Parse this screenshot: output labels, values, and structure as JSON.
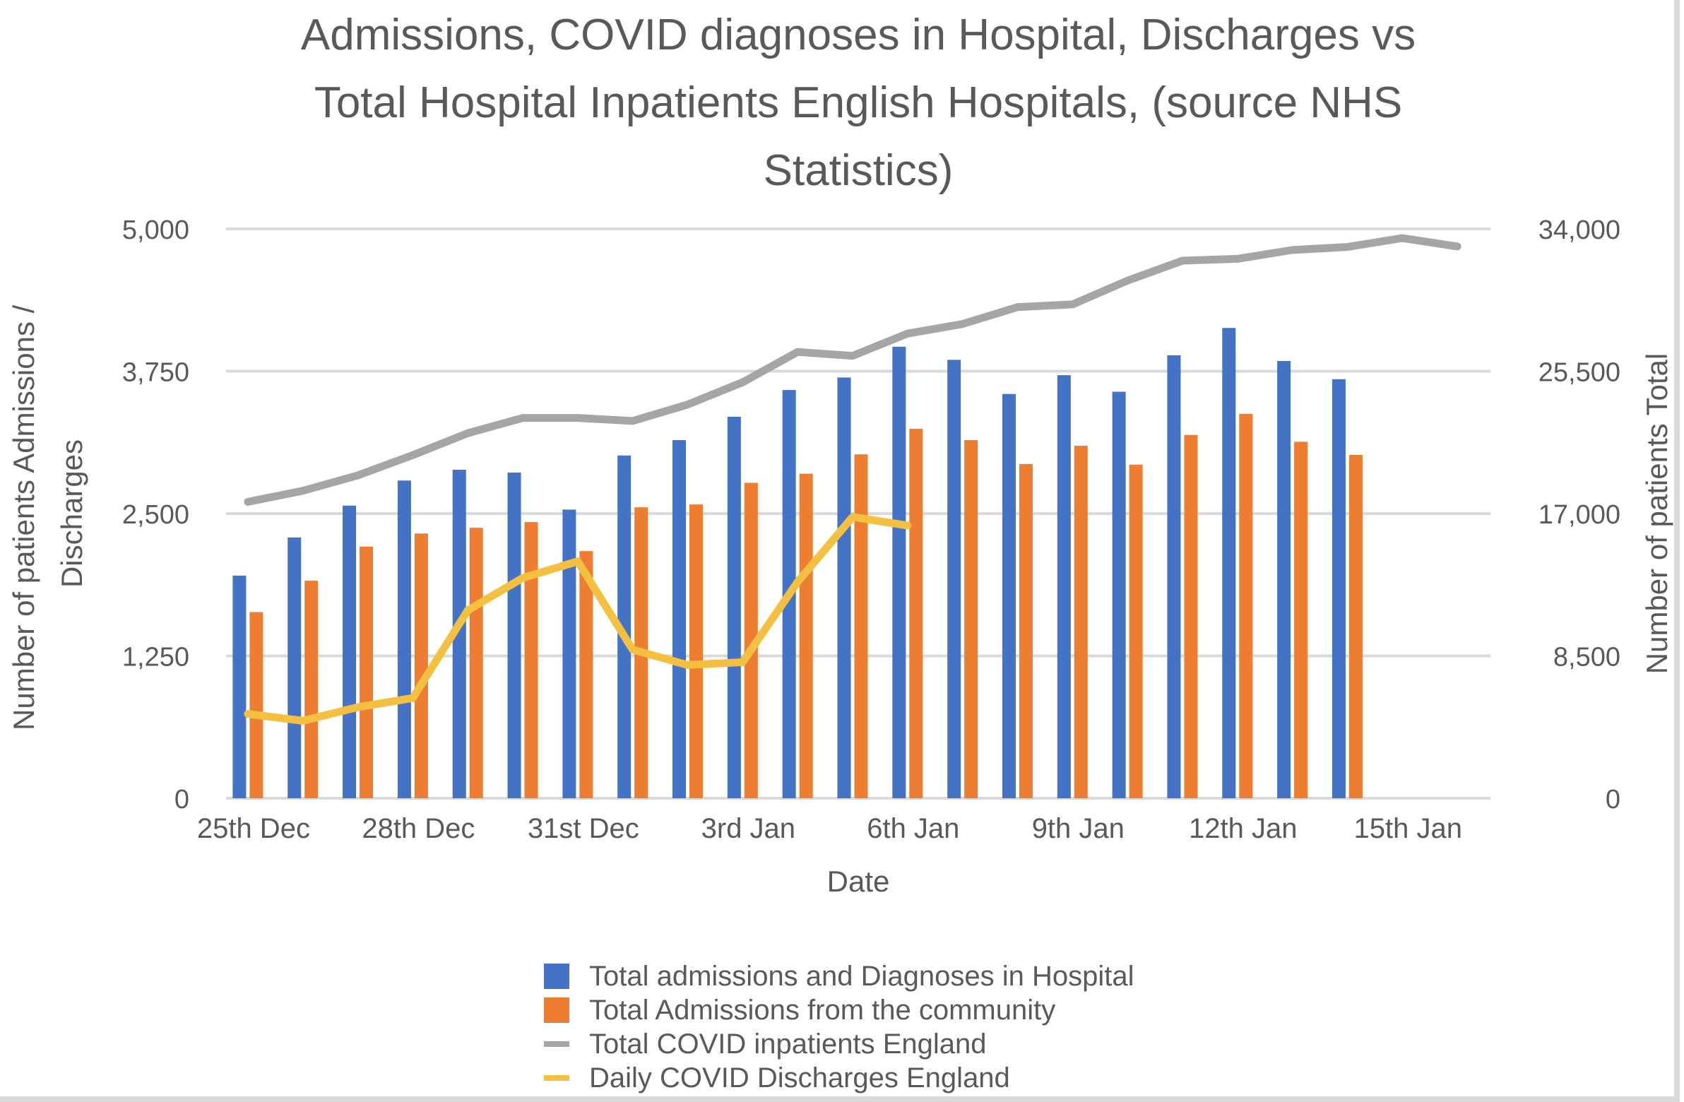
{
  "chart_data": {
    "type": "bar",
    "title": "Admissions, COVID diagnoses in Hospital, Discharges vs Total Hospital Inpatients English Hospitals, (source NHS Statistics)",
    "title_lines": [
      "Admissions, COVID diagnoses in Hospital, Discharges vs",
      "Total Hospital Inpatients English Hospitals, (source NHS",
      "Statistics)"
    ],
    "xlabel": "Date",
    "ylabel": "Number of patients Admissions / Discharges",
    "ylabel_lines": [
      "Number of patients Admissions /",
      "Discharges"
    ],
    "y2label": "Number of patients Total",
    "ylim": [
      0,
      5000
    ],
    "y2lim": [
      0,
      34000
    ],
    "yticks": [
      "0",
      "1,250",
      "2,500",
      "3,750",
      "5,000"
    ],
    "y2ticks": [
      "0",
      "8,500",
      "17,000",
      "25,500",
      "34,000"
    ],
    "grid": true,
    "legend_position": "bottom",
    "categories": [
      "25 Dec",
      "26 Dec",
      "27 Dec",
      "28 Dec",
      "29 Dec",
      "30 Dec",
      "31 Dec",
      "1 Jan",
      "2 Jan",
      "3 Jan",
      "4 Jan",
      "5 Jan",
      "6 Jan",
      "7 Jan",
      "8 Jan",
      "9 Jan",
      "10 Jan",
      "11 Jan",
      "12 Jan",
      "13 Jan",
      "14 Jan",
      "15 Jan",
      "16 Jan"
    ],
    "tick_labels": [
      {
        "index": 0,
        "label": "25th Dec"
      },
      {
        "index": 3,
        "label": "28th Dec"
      },
      {
        "index": 6,
        "label": "31st Dec"
      },
      {
        "index": 9,
        "label": "3rd Jan"
      },
      {
        "index": 12,
        "label": "6th Jan"
      },
      {
        "index": 15,
        "label": "9th Jan"
      },
      {
        "index": 18,
        "label": "12th Jan"
      },
      {
        "index": 21,
        "label": "15th Jan"
      }
    ],
    "series": [
      {
        "name": "Total admissions and Diagnoses in Hospital",
        "type": "bar",
        "axis": "left",
        "color": "#4472c4",
        "values": [
          1955,
          2290,
          2570,
          2790,
          2885,
          2860,
          2535,
          3010,
          3145,
          3350,
          3585,
          3695,
          3965,
          3850,
          3550,
          3715,
          3570,
          3890,
          4130,
          3840,
          3680,
          null,
          null
        ]
      },
      {
        "name": "Total Admissions from the community",
        "type": "bar",
        "axis": "left",
        "color": "#ed7d31",
        "values": [
          1635,
          1910,
          2210,
          2325,
          2375,
          2425,
          2170,
          2555,
          2580,
          2770,
          2850,
          3020,
          3245,
          3145,
          2935,
          3095,
          2930,
          3190,
          3375,
          3130,
          3015,
          null,
          null
        ]
      },
      {
        "name": "Total COVID inpatients England",
        "type": "line",
        "axis": "right",
        "color": "#a5a5a5",
        "values": [
          17700,
          18360,
          19280,
          20490,
          21800,
          22710,
          22710,
          22530,
          23510,
          24840,
          26650,
          26420,
          27750,
          28320,
          29330,
          29490,
          30910,
          32100,
          32210,
          32740,
          32920,
          33450,
          32950
        ]
      },
      {
        "name": "Daily COVID Discharges England",
        "type": "line",
        "axis": "left",
        "color": "#f4c042",
        "values": [
          740,
          680,
          800,
          880,
          1650,
          1935,
          2080,
          1305,
          1170,
          1195,
          1900,
          2470,
          2395,
          null,
          null,
          null,
          null,
          null,
          null,
          null,
          null,
          null,
          null
        ]
      }
    ]
  }
}
